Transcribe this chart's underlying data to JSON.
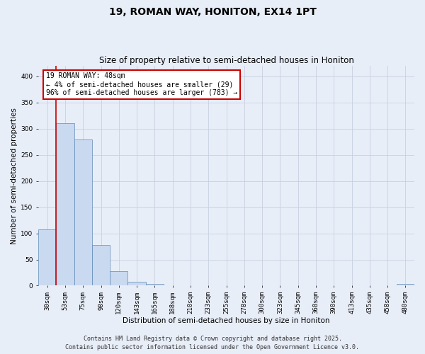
{
  "title": "19, ROMAN WAY, HONITON, EX14 1PT",
  "subtitle": "Size of property relative to semi-detached houses in Honiton",
  "xlabel": "Distribution of semi-detached houses by size in Honiton",
  "ylabel": "Number of semi-detached properties",
  "categories": [
    "30sqm",
    "53sqm",
    "75sqm",
    "98sqm",
    "120sqm",
    "143sqm",
    "165sqm",
    "188sqm",
    "210sqm",
    "233sqm",
    "255sqm",
    "278sqm",
    "300sqm",
    "323sqm",
    "345sqm",
    "368sqm",
    "390sqm",
    "413sqm",
    "435sqm",
    "458sqm",
    "480sqm"
  ],
  "values": [
    107,
    311,
    279,
    78,
    28,
    7,
    3,
    0,
    0,
    0,
    0,
    0,
    0,
    0,
    0,
    0,
    0,
    0,
    0,
    0,
    3
  ],
  "bar_color": "#c9d9f0",
  "bar_edge_color": "#5f8ab8",
  "annotation_text": "19 ROMAN WAY: 48sqm\n← 4% of semi-detached houses are smaller (29)\n96% of semi-detached houses are larger (783) →",
  "annotation_box_color": "#ffffff",
  "annotation_box_edge_color": "#cc0000",
  "annotation_text_color": "#000000",
  "red_line_x": 0.5,
  "red_line_color": "#cc0000",
  "ylim": [
    0,
    420
  ],
  "yticks": [
    0,
    50,
    100,
    150,
    200,
    250,
    300,
    350,
    400
  ],
  "grid_color": "#c8d0e0",
  "bg_color": "#e8eef8",
  "footer_text": "Contains HM Land Registry data © Crown copyright and database right 2025.\nContains public sector information licensed under the Open Government Licence v3.0.",
  "title_fontsize": 10,
  "subtitle_fontsize": 8.5,
  "axis_label_fontsize": 7.5,
  "tick_fontsize": 6.5,
  "annotation_fontsize": 7,
  "footer_fontsize": 6
}
